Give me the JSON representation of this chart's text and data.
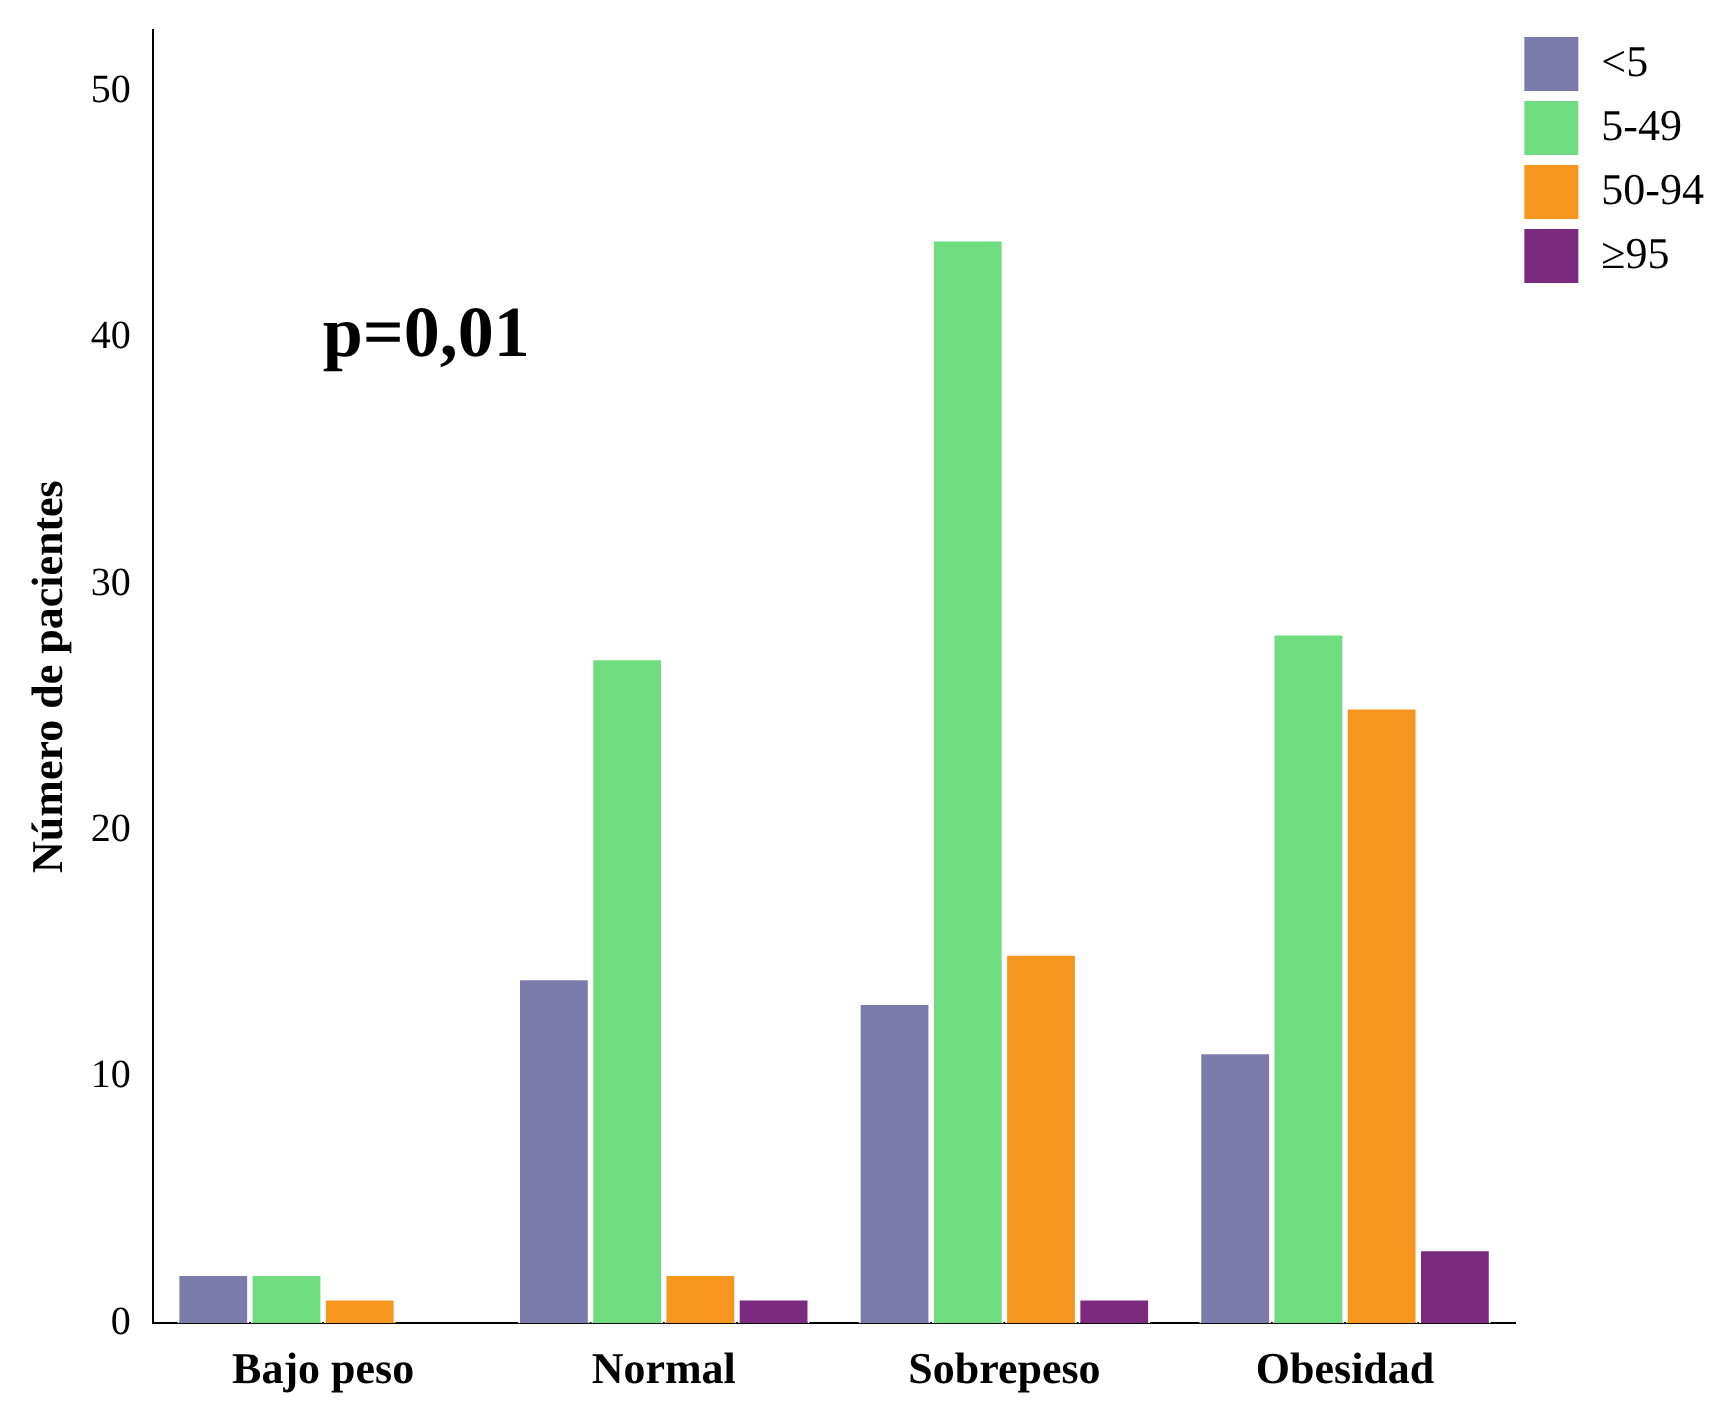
{
  "chart_data": {
    "type": "bar",
    "ylabel": "Número de pacientes",
    "categories": [
      "Bajo peso",
      "Normal",
      "Sobrepeso",
      "Obesidad"
    ],
    "series": [
      {
        "name": "<5",
        "color": "#7b7bab",
        "values": [
          2,
          14,
          13,
          11
        ]
      },
      {
        "name": "5-49",
        "color": "#6fdc80",
        "values": [
          2,
          27,
          44,
          28
        ]
      },
      {
        "name": "50-94",
        "color": "#f7961e",
        "values": [
          1,
          2,
          15,
          25
        ]
      },
      {
        "name": "≥95",
        "color": "#7b2a80",
        "values": [
          0,
          1,
          1,
          3
        ]
      }
    ],
    "ylim": [
      0,
      52.5
    ],
    "yticks": [
      0,
      10,
      20,
      30,
      40,
      50
    ],
    "grid": false,
    "legend": "top right",
    "annotations": [
      "p=0,01"
    ]
  }
}
